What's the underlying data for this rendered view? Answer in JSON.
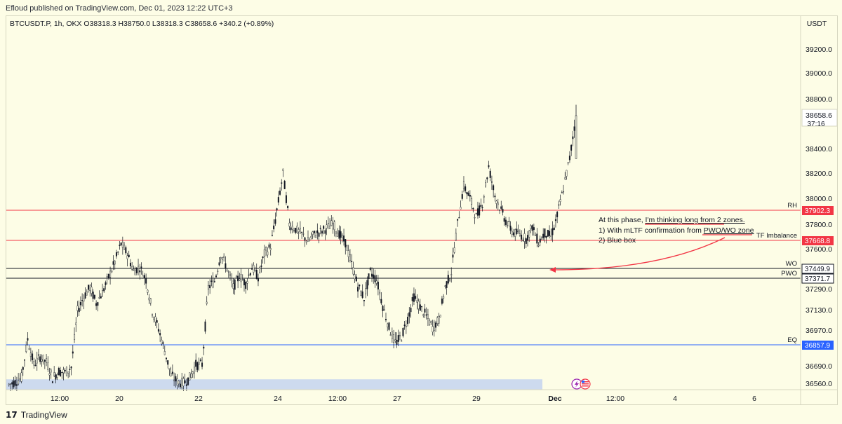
{
  "header": {
    "published": "Efloud published on TradingView.com, Dec 01, 2023 12:22 UTC+3"
  },
  "footer": {
    "brand": "TradingView",
    "logo_icon": "tradingview-logo-icon"
  },
  "chart_data": {
    "type": "candlestick",
    "symbol_line": "BTCUSDT.P, 1h, OKX  O38318.3  H38750.0  L38318.3  C38658.6  +340.2 (+0.89%)",
    "currency": "USDT",
    "y_ticks": [
      39200,
      39000,
      38800,
      38400,
      38200,
      38000,
      37800,
      37600,
      37290,
      37130,
      36970,
      36690,
      36560
    ],
    "y_tick_labels": [
      "39200.0",
      "39000.0",
      "38800.0",
      "38400.0",
      "38200.0",
      "38000.0",
      "37800.0",
      "37600.0",
      "37290.0",
      "37130.0",
      "36970.0",
      "36690.0",
      "36560.0"
    ],
    "x_tick_labels": [
      "12:00",
      "20",
      "22",
      "24",
      "12:00",
      "27",
      "29",
      "Dec",
      "12:00",
      "4",
      "6"
    ],
    "last_price": {
      "value": "38658.6",
      "countdown": "37:16"
    },
    "levels": [
      {
        "name": "RH",
        "value": 37902.3,
        "label": "37902.3",
        "color": "#f23645"
      },
      {
        "name": "",
        "value": 37668.8,
        "label": "37668.8",
        "color": "#f23645"
      },
      {
        "name": "WO",
        "value": 37449.9,
        "label": "37449.9",
        "color": "#131722"
      },
      {
        "name": "PWO",
        "value": 37371.7,
        "label": "37371.7",
        "color": "#131722"
      },
      {
        "name": "EQ",
        "value": 36857.9,
        "label": "36857.9",
        "color": "#2962ff"
      }
    ],
    "imbalance_label": "TF Imbalance",
    "annotation": {
      "line1_plain": "At this phase, ",
      "line1_underlined": "I'm thinking long from 2 zones.",
      "line2_plain": "1) With mLTF confirmation from ",
      "line2_underlined": "PWO/WO zone",
      "line3": "2) Blue box"
    },
    "blue_box": {
      "top_price": 36590,
      "color": "#c8d6ee"
    },
    "ohlc_anchor_prices": [
      36550,
      36570,
      36600,
      36900,
      36700,
      36760,
      36720,
      36600,
      36650,
      36640,
      36680,
      37120,
      37230,
      37300,
      37180,
      37260,
      37380,
      37500,
      37640,
      37560,
      37430,
      37460,
      37360,
      37120,
      36980,
      36810,
      36620,
      36570,
      36560,
      36600,
      36700,
      36700,
      37300,
      37350,
      37560,
      37450,
      37300,
      37390,
      37330,
      37460,
      37380,
      37560,
      37620,
      37900,
      38200,
      37800,
      37760,
      37720,
      37660,
      37720,
      37740,
      37770,
      37800,
      37720,
      37650,
      37480,
      37310,
      37220,
      37420,
      37360,
      37160,
      36990,
      36870,
      36920,
      37060,
      37230,
      37150,
      37080,
      36990,
      37050,
      37300,
      37420,
      37800,
      38100,
      38000,
      37850,
      37960,
      38250,
      38020,
      37900,
      37800,
      37730,
      37720,
      37680,
      37780,
      37650,
      37730,
      37700,
      37860,
      38080,
      38320,
      38658.6
    ]
  }
}
